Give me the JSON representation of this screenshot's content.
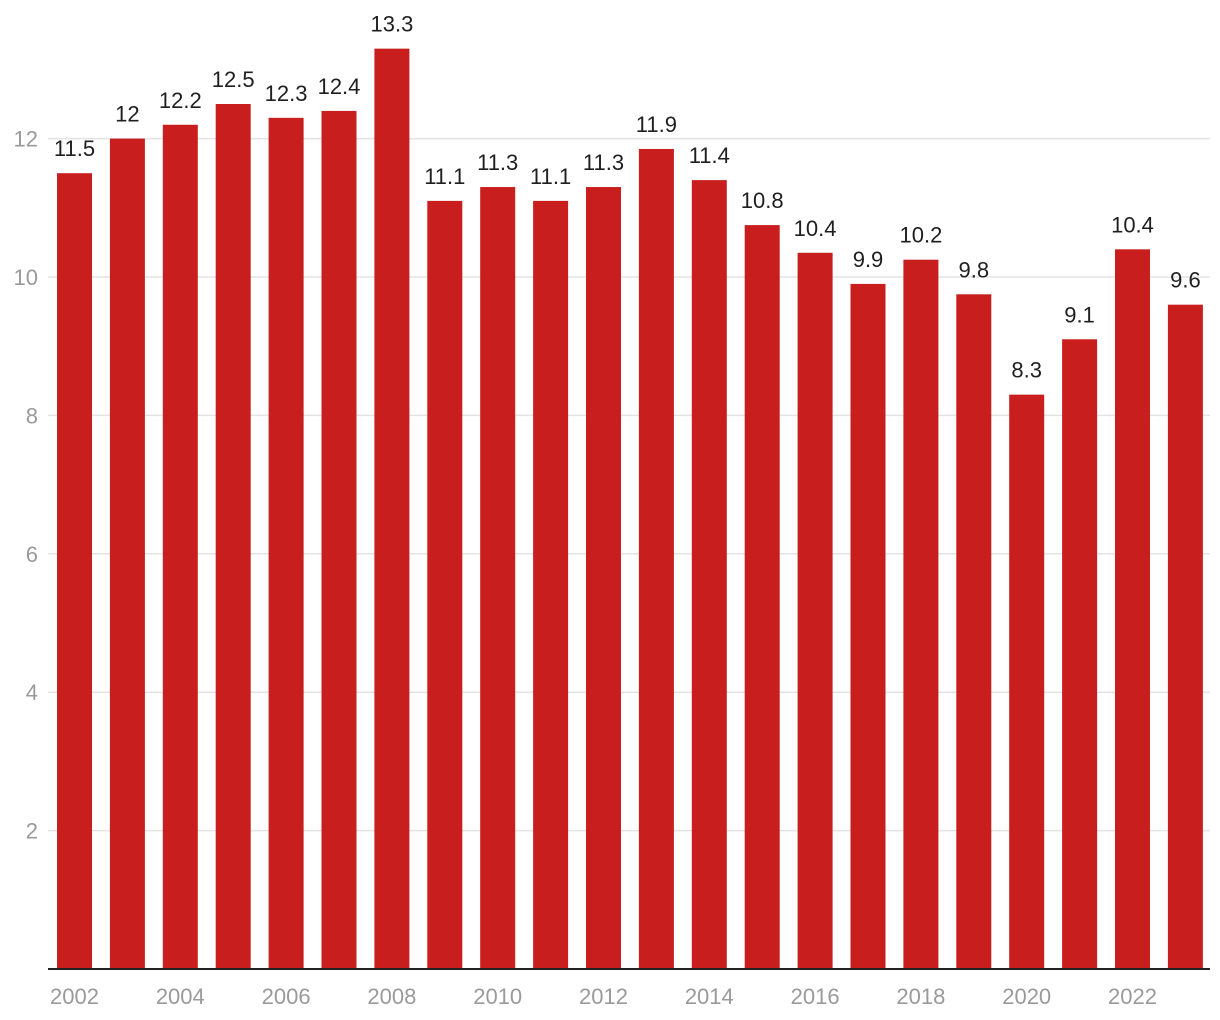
{
  "chart_data": {
    "type": "bar",
    "title": "",
    "xlabel": "",
    "ylabel": "",
    "categories": [
      "2002",
      "2003",
      "2004",
      "2005",
      "2006",
      "2007",
      "2008",
      "2009",
      "2010",
      "2011",
      "2012",
      "2013",
      "2014",
      "2015",
      "2016",
      "2017",
      "2018",
      "2019",
      "2020",
      "2021",
      "2022",
      "2023"
    ],
    "values": [
      11.5,
      12.0,
      12.2,
      12.5,
      12.3,
      12.4,
      13.3,
      11.1,
      11.3,
      11.1,
      11.3,
      11.85,
      11.4,
      10.75,
      10.35,
      9.9,
      10.25,
      9.75,
      8.3,
      9.1,
      10.4,
      9.6
    ],
    "value_labels": [
      "11.5",
      "12",
      "12.2",
      "12.5",
      "12.3",
      "12.4",
      "13.3",
      "11.1",
      "11.3",
      "11.1",
      "11.3",
      "11.9",
      "11.4",
      "10.8",
      "10.4",
      "9.9",
      "10.2",
      "9.8",
      "8.3",
      "9.1",
      "10.4",
      "9.6"
    ],
    "x_tick_labels": [
      "2002",
      "",
      "2004",
      "",
      "2006",
      "",
      "2008",
      "",
      "2010",
      "",
      "2012",
      "",
      "2014",
      "",
      "2016",
      "",
      "2018",
      "",
      "2020",
      "",
      "2022",
      ""
    ],
    "y_ticks": [
      2,
      4,
      6,
      8,
      10,
      12
    ],
    "ylim": [
      0,
      14
    ],
    "grid": true,
    "legend": "none",
    "bar_color": "#c81e1e"
  }
}
